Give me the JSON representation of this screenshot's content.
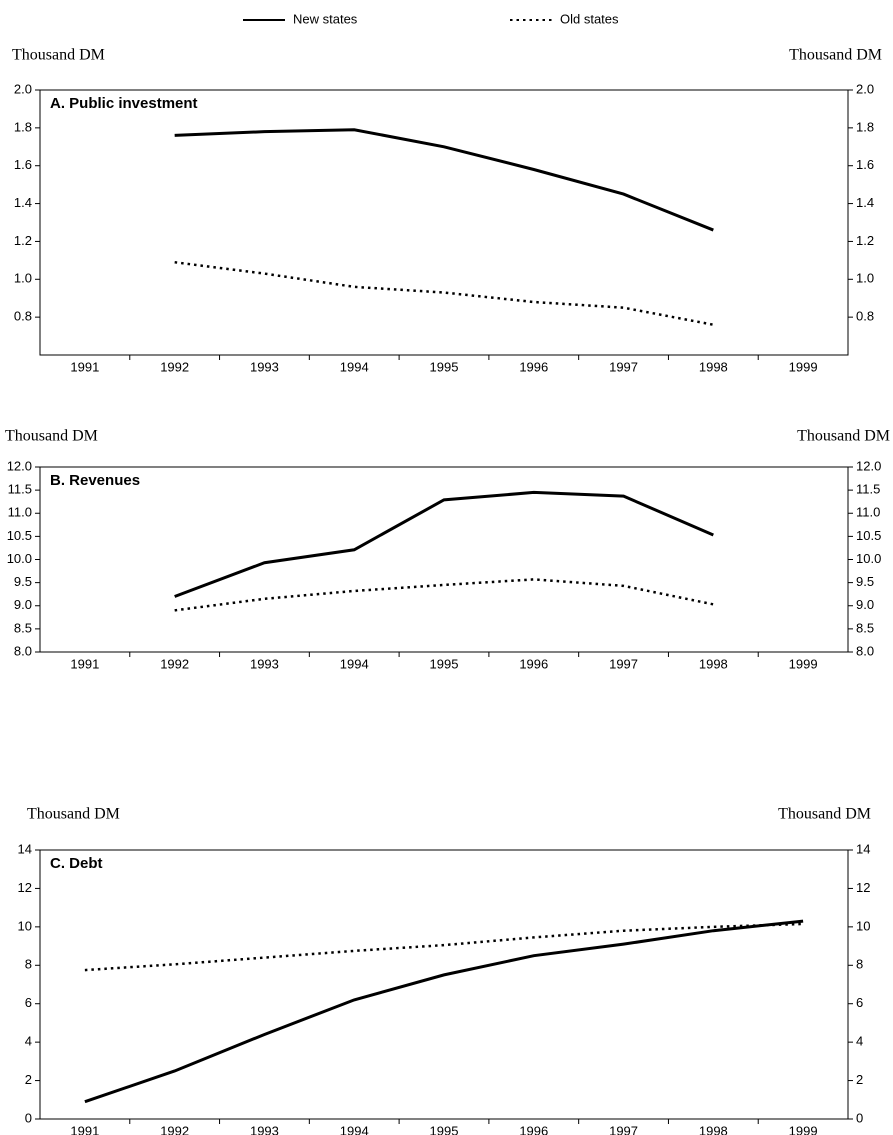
{
  "chart_data": [
    {
      "type": "line",
      "title": "A. Public investment",
      "ylabel": "Thousand DM",
      "y2label": "Thousand DM",
      "categories": [
        "1991",
        "1992",
        "1993",
        "1994",
        "1995",
        "1996",
        "1997",
        "1998",
        "1999"
      ],
      "series": [
        {
          "name": "New states",
          "color": "#000000",
          "style": "solid",
          "values": [
            null,
            1.76,
            1.78,
            1.79,
            1.7,
            1.58,
            1.45,
            1.26,
            null
          ]
        },
        {
          "name": "Old states",
          "color": "#000000",
          "style": "dotted",
          "values": [
            null,
            1.09,
            1.03,
            0.96,
            0.93,
            0.88,
            0.85,
            0.76,
            null
          ]
        }
      ],
      "ylim": [
        0.6,
        2.0
      ],
      "yticks": [
        0.8,
        {
          "value": 1.0,
          "label": "1.0"
        },
        1.2,
        1.4,
        1.6,
        1.8,
        {
          "value": 2.0,
          "label": "2.0"
        }
      ]
    },
    {
      "type": "line",
      "title": "B. Revenues",
      "ylabel": "Thousand DM",
      "y2label": "Thousand DM",
      "categories": [
        "1991",
        "1992",
        "1993",
        "1994",
        "1995",
        "1996",
        "1997",
        "1998",
        "1999"
      ],
      "series": [
        {
          "color": "#000000",
          "style": "solid",
          "values": [
            null,
            9.2,
            9.93,
            10.21,
            11.29,
            11.45,
            11.37,
            10.53,
            null
          ]
        },
        {
          "color": "#000000",
          "style": "dotted",
          "values": [
            null,
            8.9,
            9.15,
            9.32,
            9.45,
            9.57,
            9.43,
            9.03,
            null
          ]
        }
      ],
      "ylim": [
        8.0,
        12.0
      ],
      "yticks": [
        {
          "value": 8,
          "label": "8.0"
        },
        8.5,
        {
          "value": 9,
          "label": "9.0"
        },
        9.5,
        {
          "value": 10,
          "label": "10.0"
        },
        10.5,
        {
          "value": 11,
          "label": "11.0"
        },
        11.5,
        {
          "value": 12,
          "label": "12.0"
        }
      ]
    },
    {
      "type": "line",
      "title": "C. Debt",
      "ylabel": "Thousand DM",
      "y2label": "Thousand DM",
      "categories": [
        "1991",
        "1992",
        "1993",
        "1994",
        "1995",
        "1996",
        "1997",
        "1998",
        "1999"
      ],
      "series": [
        {
          "color": "#000000",
          "style": "solid",
          "values": [
            0.9,
            2.5,
            4.4,
            6.2,
            7.5,
            8.5,
            9.1,
            9.8,
            10.3
          ]
        },
        {
          "color": "#000000",
          "style": "dotted",
          "values": [
            7.75,
            8.05,
            8.4,
            8.75,
            9.05,
            9.45,
            9.8,
            10.0,
            10.15
          ]
        }
      ],
      "ylim": [
        0,
        14
      ],
      "yticks": [
        0,
        2,
        4,
        6,
        8,
        10,
        12,
        14
      ]
    }
  ]
}
